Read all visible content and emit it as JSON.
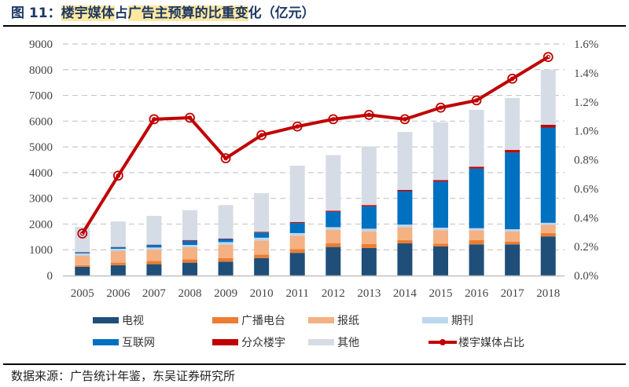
{
  "header": {
    "figure_no": "图 11：",
    "title_part1": "楼宇媒体",
    "title_part2": "占",
    "title_part3": "广告主预算的比重变",
    "title_part4": "化（亿元）"
  },
  "footer": {
    "source": "数据来源：广告统计年鉴，东吴证券研究所"
  },
  "chart_data": {
    "type": "bar",
    "stacked": true,
    "title": "楼宇媒体占广告主预算的比重变化（亿元）",
    "xlabel": "",
    "ylabel": "",
    "categories": [
      "2005",
      "2006",
      "2007",
      "2008",
      "2009",
      "2010",
      "2011",
      "2012",
      "2013",
      "2014",
      "2015",
      "2016",
      "2017",
      "2018"
    ],
    "ylim": [
      0,
      9000
    ],
    "yticks": [
      "0",
      "1000",
      "2000",
      "3000",
      "4000",
      "5000",
      "6000",
      "7000",
      "8000",
      "9000"
    ],
    "y2lim": [
      0,
      1.6
    ],
    "y2ticks": [
      "0.0%",
      "0.2%",
      "0.4%",
      "0.6%",
      "0.8%",
      "1.0%",
      "1.2%",
      "1.4%",
      "1.6%"
    ],
    "grid": true,
    "legend_position": "bottom",
    "series": [
      {
        "name": "电视",
        "color": "#1f4e79",
        "values": [
          340,
          400,
          440,
          500,
          540,
          680,
          880,
          1110,
          1070,
          1250,
          1130,
          1210,
          1210,
          1520
        ]
      },
      {
        "name": "广播电台",
        "color": "#ed7d31",
        "values": [
          60,
          100,
          130,
          130,
          140,
          130,
          150,
          150,
          150,
          130,
          110,
          170,
          110,
          130
        ]
      },
      {
        "name": "报纸",
        "color": "#f4b183",
        "values": [
          380,
          460,
          440,
          470,
          520,
          550,
          520,
          520,
          500,
          500,
          520,
          380,
          400,
          320
        ]
      },
      {
        "name": "期刊",
        "color": "#bdd7ee",
        "values": [
          80,
          80,
          80,
          90,
          100,
          110,
          100,
          100,
          100,
          100,
          100,
          80,
          80,
          80
        ]
      },
      {
        "name": "互联网",
        "color": "#0070c0",
        "values": [
          40,
          60,
          100,
          160,
          120,
          200,
          390,
          600,
          870,
          1300,
          1790,
          2320,
          2980,
          3700
        ]
      },
      {
        "name": "分众楼宇",
        "color": "#c00000",
        "values": [
          10,
          10,
          10,
          30,
          20,
          30,
          40,
          40,
          50,
          50,
          60,
          70,
          100,
          110
        ]
      },
      {
        "name": "其他",
        "color": "#d6dce5",
        "values": [
          980,
          990,
          1120,
          1160,
          1300,
          1500,
          2190,
          2160,
          2280,
          2250,
          2250,
          2210,
          2020,
          2140
        ]
      }
    ],
    "line_series": {
      "name": "楼宇媒体占比",
      "color": "#c00000",
      "axis": "right",
      "unit": "%",
      "values": [
        0.29,
        0.69,
        1.08,
        1.09,
        0.81,
        0.97,
        1.03,
        1.08,
        1.11,
        1.08,
        1.16,
        1.21,
        1.36,
        1.51
      ]
    }
  }
}
